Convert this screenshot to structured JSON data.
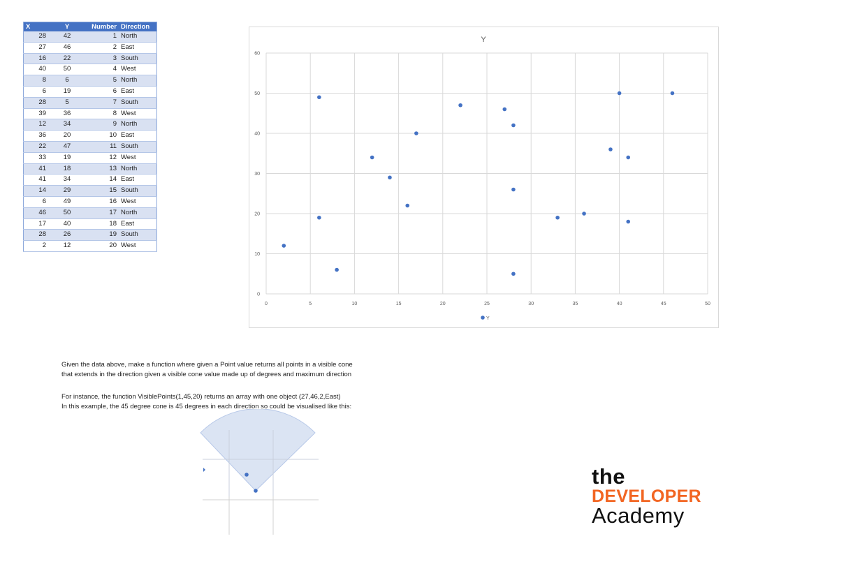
{
  "table": {
    "headers": [
      "X",
      "Y",
      "Number",
      "Direction"
    ],
    "rows": [
      {
        "x": "28",
        "y": "42",
        "number": "1",
        "direction": "North"
      },
      {
        "x": "27",
        "y": "46",
        "number": "2",
        "direction": "East"
      },
      {
        "x": "16",
        "y": "22",
        "number": "3",
        "direction": "South"
      },
      {
        "x": "40",
        "y": "50",
        "number": "4",
        "direction": "West"
      },
      {
        "x": "8",
        "y": "6",
        "number": "5",
        "direction": "North"
      },
      {
        "x": "6",
        "y": "19",
        "number": "6",
        "direction": "East"
      },
      {
        "x": "28",
        "y": "5",
        "number": "7",
        "direction": "South"
      },
      {
        "x": "39",
        "y": "36",
        "number": "8",
        "direction": "West"
      },
      {
        "x": "12",
        "y": "34",
        "number": "9",
        "direction": "North"
      },
      {
        "x": "36",
        "y": "20",
        "number": "10",
        "direction": "East"
      },
      {
        "x": "22",
        "y": "47",
        "number": "11",
        "direction": "South"
      },
      {
        "x": "33",
        "y": "19",
        "number": "12",
        "direction": "West"
      },
      {
        "x": "41",
        "y": "18",
        "number": "13",
        "direction": "North"
      },
      {
        "x": "41",
        "y": "34",
        "number": "14",
        "direction": "East"
      },
      {
        "x": "14",
        "y": "29",
        "number": "15",
        "direction": "South"
      },
      {
        "x": "6",
        "y": "49",
        "number": "16",
        "direction": "West"
      },
      {
        "x": "46",
        "y": "50",
        "number": "17",
        "direction": "North"
      },
      {
        "x": "17",
        "y": "40",
        "number": "18",
        "direction": "East"
      },
      {
        "x": "28",
        "y": "26",
        "number": "19",
        "direction": "South"
      },
      {
        "x": "2",
        "y": "12",
        "number": "20",
        "direction": "West"
      }
    ]
  },
  "chart_data": {
    "type": "scatter",
    "title": "Y",
    "xlabel": "",
    "ylabel": "",
    "xlim": [
      0,
      50
    ],
    "ylim": [
      0,
      60
    ],
    "x_ticks": [
      0,
      5,
      10,
      15,
      20,
      25,
      30,
      35,
      40,
      45,
      50
    ],
    "y_ticks": [
      0,
      10,
      20,
      30,
      40,
      50,
      60
    ],
    "grid": true,
    "legend": "bottom",
    "series": [
      {
        "name": "Y",
        "color": "#4472c4",
        "x": [
          28,
          27,
          16,
          40,
          8,
          6,
          28,
          39,
          12,
          36,
          22,
          33,
          41,
          41,
          14,
          6,
          46,
          17,
          28,
          2
        ],
        "y": [
          42,
          46,
          22,
          50,
          6,
          19,
          5,
          36,
          34,
          20,
          47,
          19,
          18,
          34,
          29,
          49,
          50,
          40,
          26,
          12
        ]
      }
    ]
  },
  "description": {
    "line1": "Given the data above, make a function where given a Point value returns all points in a visible cone",
    "line2": "that extends in the direction given a visible cone value made up of degrees and maximum direction",
    "line3": "For instance, the function VisiblePoints(1,45,20) returns an array with one object (27,46,2,East)",
    "line4": "In this example, the 45 degree cone is 45 degrees in each direction so could be visualised like this:"
  },
  "logo": {
    "the": "the",
    "developer": "DEVELOPER",
    "academy": "Academy",
    "accent_color": "#f26522"
  },
  "colors": {
    "header_blue": "#4472c4",
    "band_blue": "#d9e1f2",
    "cone_fill": "#dae3f3"
  }
}
